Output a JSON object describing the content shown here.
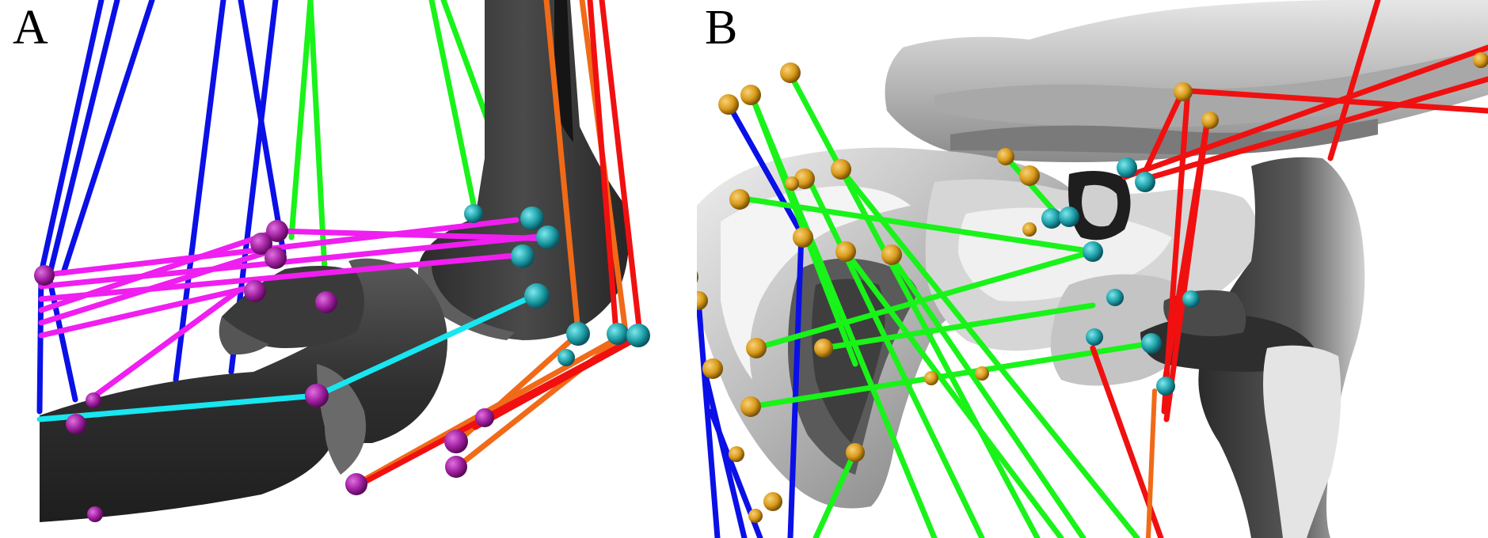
{
  "figure": {
    "panels": [
      {
        "label": "A"
      },
      {
        "label": "B"
      }
    ]
  },
  "colors": {
    "background": "#ffffff",
    "bone_dark": "#3a3a3a",
    "bone_light": "#d8d8d8",
    "muscle_blue": "#0a10e6",
    "muscle_green": "#19f319",
    "muscle_magenta": "#f01ef0",
    "muscle_cyan": "#18e6f0",
    "muscle_orange": "#f06a18",
    "muscle_red": "#f01010",
    "marker_purple": "#a020a0",
    "marker_teal": "#1fa0a8",
    "marker_gold": "#d99a1a"
  },
  "icons": {
    "marker": "sphere-marker-icon"
  }
}
